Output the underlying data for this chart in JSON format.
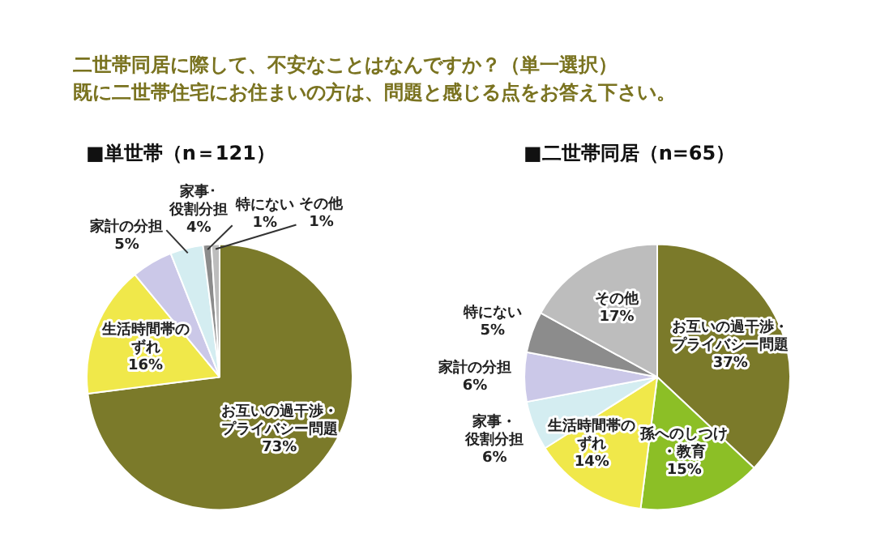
{
  "chart_data": [
    {
      "type": "other",
      "title": "二世帯同居に際して、不安なことはなんですか？（単一選択）",
      "subtitle": "既に二世帯住宅にお住まいの方は、問題と感じる点をお答え下さい。"
    },
    {
      "type": "pie",
      "title": "■単世帯（n＝121）",
      "categories": [
        "お互いの過干渉・プライバシー問題",
        "生活時間帯のずれ",
        "家計の分担",
        "家事･役割分担",
        "特にない",
        "その他"
      ],
      "values": [
        73,
        16,
        5,
        4,
        1,
        1
      ],
      "value_labels": [
        "73%",
        "16%",
        "5%",
        "4%",
        "1%",
        "1%"
      ],
      "colors": [
        "#7b7a2a",
        "#f0e84a",
        "#cbc8e8",
        "#d4edf1",
        "#8c8c8c",
        "#bdbdbd"
      ],
      "legend": false
    },
    {
      "type": "pie",
      "title": "■二世帯同居（n=65）",
      "categories": [
        "お互いの過干渉・プライバシー問題",
        "孫へのしつけ・教育",
        "生活時間帯のずれ",
        "家事・役割分担",
        "家計の分担",
        "特にない",
        "その他"
      ],
      "values": [
        37,
        15,
        14,
        6,
        6,
        5,
        17
      ],
      "value_labels": [
        "37%",
        "15%",
        "14%",
        "6%",
        "6%",
        "5%",
        "17%"
      ],
      "colors": [
        "#7b7a2a",
        "#8cbf26",
        "#f0e84a",
        "#d4edf1",
        "#cbc8e8",
        "#8c8c8c",
        "#bdbdbd"
      ],
      "legend": false
    }
  ]
}
